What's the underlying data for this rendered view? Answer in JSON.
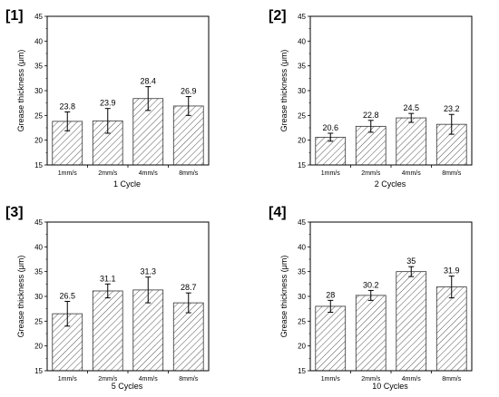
{
  "figure": {
    "panels": [
      {
        "tag": "[1]",
        "xlabel": "1 Cycle"
      },
      {
        "tag": "[2]",
        "xlabel": "2 Cycles"
      },
      {
        "tag": "[3]",
        "xlabel": "5 Cycles"
      },
      {
        "tag": "[4]",
        "xlabel": "10 Cycles"
      }
    ]
  },
  "chart_data": [
    {
      "type": "bar",
      "tag": "[1]",
      "categories": [
        "1mm/s",
        "2mm/s",
        "4mm/s",
        "8mm/s"
      ],
      "values": [
        23.8,
        23.9,
        28.4,
        26.9
      ],
      "errors": [
        1.9,
        2.5,
        2.4,
        1.9
      ],
      "data_labels": [
        "23.8",
        "23.9",
        "28.4",
        "26.9"
      ],
      "xlabel": "1 Cycle",
      "ylabel": "Grease thickness (μm)",
      "ylim": [
        15,
        45
      ],
      "yticks": [
        15,
        20,
        25,
        30,
        35,
        40,
        45
      ],
      "bar_fill": "diagonal-hatch"
    },
    {
      "type": "bar",
      "tag": "[2]",
      "categories": [
        "1mm/s",
        "2mm/s",
        "4mm/s",
        "8mm/s"
      ],
      "values": [
        20.6,
        22.8,
        24.5,
        23.2
      ],
      "errors": [
        0.8,
        1.2,
        0.9,
        2.0
      ],
      "data_labels": [
        "20.6",
        "22.8",
        "24.5",
        "23.2"
      ],
      "xlabel": "2 Cycles",
      "ylabel": "Grease thickness (μm)",
      "ylim": [
        15,
        45
      ],
      "yticks": [
        15,
        20,
        25,
        30,
        35,
        40,
        45
      ],
      "bar_fill": "diagonal-hatch"
    },
    {
      "type": "bar",
      "tag": "[3]",
      "categories": [
        "1mm/s",
        "2mm/s",
        "4mm/s",
        "8mm/s"
      ],
      "values": [
        26.5,
        31.1,
        31.3,
        28.7
      ],
      "errors": [
        2.5,
        1.4,
        2.6,
        2.0
      ],
      "data_labels": [
        "26.5",
        "31.1",
        "31.3",
        "28.7"
      ],
      "xlabel": "5 Cycles",
      "ylabel": "Grease thickness (μm)",
      "ylim": [
        15,
        45
      ],
      "yticks": [
        15,
        20,
        25,
        30,
        35,
        40,
        45
      ],
      "bar_fill": "diagonal-hatch"
    },
    {
      "type": "bar",
      "tag": "[4]",
      "categories": [
        "1mm/s",
        "2mm/s",
        "4mm/s",
        "8mm/s"
      ],
      "values": [
        28,
        30.2,
        35,
        31.9
      ],
      "errors": [
        1.2,
        1.0,
        1.0,
        2.2
      ],
      "data_labels": [
        "28",
        "30.2",
        "35",
        "31.9"
      ],
      "xlabel": "10 Cycles",
      "ylabel": "Grease thickness (μm)",
      "ylim": [
        15,
        45
      ],
      "yticks": [
        15,
        20,
        25,
        30,
        35,
        40,
        45
      ],
      "bar_fill": "diagonal-hatch"
    }
  ]
}
